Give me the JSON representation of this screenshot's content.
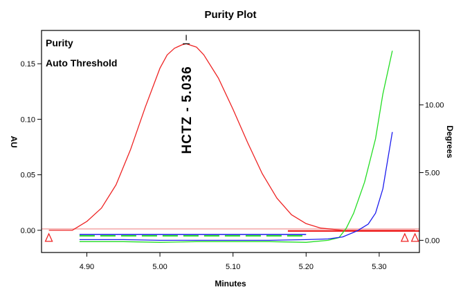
{
  "chart_data": {
    "type": "line",
    "title": "Purity Plot",
    "xlabel": "Minutes",
    "ylabel": "AU",
    "y2label": "Degrees",
    "xlim": [
      4.838,
      5.355
    ],
    "ylim": [
      -0.02,
      0.18
    ],
    "y2lim": [
      -0.9,
      15.5
    ],
    "x_ticks": [
      "4.90",
      "5.00",
      "5.10",
      "5.20",
      "5.30"
    ],
    "y_ticks": [
      "0.00",
      "0.05",
      "0.10",
      "0.15"
    ],
    "y2_ticks": [
      "0.00",
      "5.00",
      "10.00"
    ],
    "legend": {
      "position": "top-left",
      "items": [
        {
          "label": "Purity",
          "color": "#22dd22"
        },
        {
          "label": "Auto Threshold",
          "color": "#1a1aee"
        }
      ]
    },
    "annotation": {
      "label": "HCTZ - 5.036",
      "x": 5.036
    },
    "integration_markers_x": [
      4.848,
      5.335,
      5.349
    ],
    "series": [
      {
        "axis": "left",
        "color": "#ee2222",
        "x": [
          4.848,
          4.88,
          4.9,
          4.92,
          4.94,
          4.96,
          4.98,
          5.0,
          5.01,
          5.02,
          5.03,
          5.036,
          5.05,
          5.06,
          5.08,
          5.1,
          5.12,
          5.14,
          5.16,
          5.18,
          5.2,
          5.22,
          5.25,
          5.3,
          5.349
        ],
        "values": [
          0.0,
          0.0,
          0.008,
          0.02,
          0.041,
          0.073,
          0.111,
          0.146,
          0.158,
          0.164,
          0.167,
          0.168,
          0.165,
          0.158,
          0.137,
          0.109,
          0.079,
          0.051,
          0.029,
          0.014,
          0.006,
          0.002,
          0.0,
          0.0,
          0.0
        ]
      },
      {
        "name": "Purity",
        "axis": "right",
        "color": "#22dd22",
        "x": [
          4.89,
          4.95,
          5.0,
          5.05,
          5.1,
          5.15,
          5.2,
          5.23,
          5.245,
          5.255,
          5.265,
          5.28,
          5.295,
          5.305,
          5.318
        ],
        "values": [
          -0.1,
          -0.1,
          -0.15,
          -0.1,
          -0.1,
          -0.1,
          -0.15,
          0.0,
          0.2,
          0.9,
          2.0,
          4.3,
          7.5,
          10.8,
          14.0
        ]
      },
      {
        "name": "Auto Threshold",
        "axis": "right",
        "color": "#1a1aee",
        "x": [
          4.89,
          4.95,
          5.0,
          5.05,
          5.1,
          5.15,
          5.2,
          5.23,
          5.25,
          5.27,
          5.285,
          5.295,
          5.305,
          5.318
        ],
        "values": [
          0.05,
          0.05,
          0.0,
          0.0,
          0.0,
          0.0,
          0.05,
          0.1,
          0.25,
          0.7,
          1.2,
          2.0,
          3.8,
          8.0
        ]
      }
    ]
  }
}
